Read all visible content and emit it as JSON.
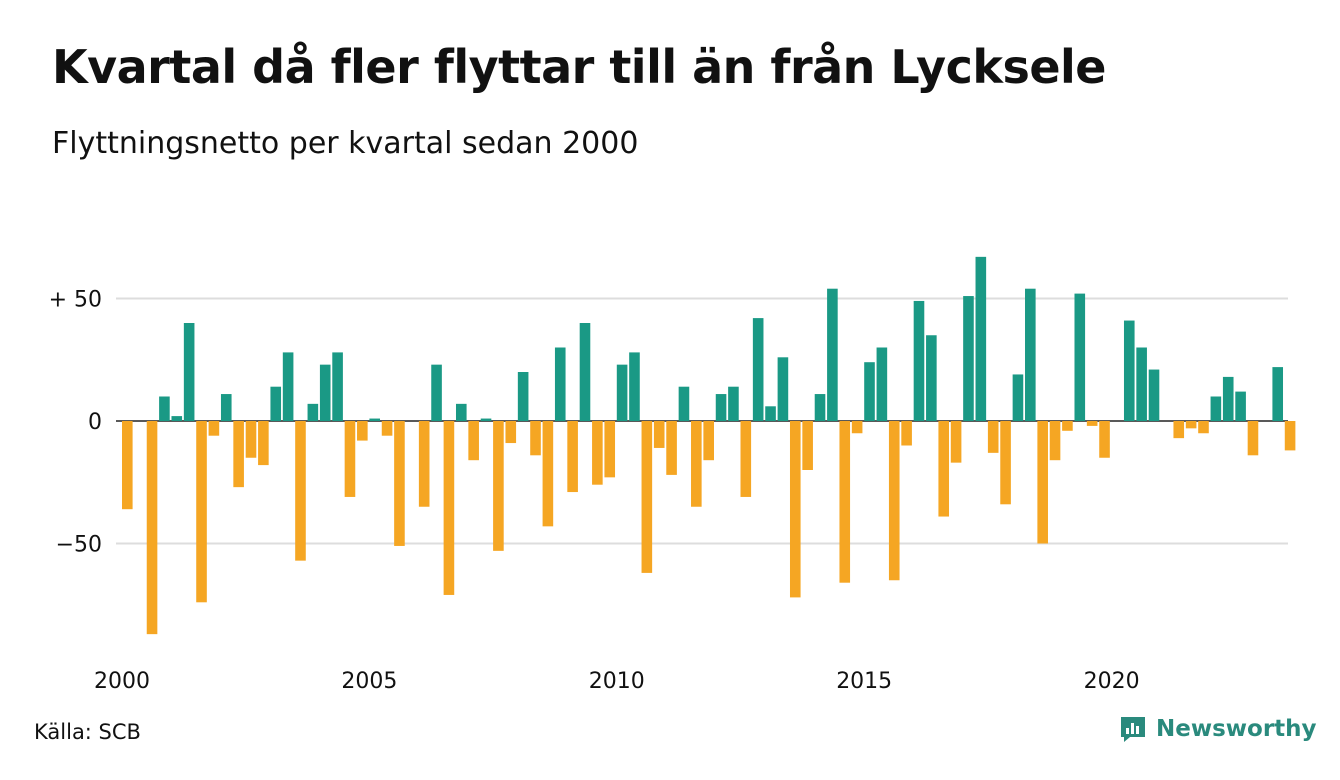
{
  "header": {
    "title": "Kvartal då fler flyttar till än från Lycksele",
    "subtitle": "Flyttningsnetto per kvartal sedan 2000"
  },
  "footer": {
    "source": "Källa: SCB",
    "brand": "Newsworthy"
  },
  "colors": {
    "positive": "#1a9985",
    "negative": "#f5a623",
    "grid": "#dddddd",
    "axis": "#222222",
    "brand": "#2a8a7d"
  },
  "icons": {
    "brand_logo": "newsworthy-logo-icon"
  },
  "chart_data": {
    "type": "bar",
    "title": "Kvartal då fler flyttar till än från Lycksele",
    "subtitle": "Flyttningsnetto per kvartal sedan 2000",
    "xlabel": "",
    "ylabel": "",
    "x_start": "2000 Q1",
    "x_ticks": [
      {
        "value": 2000,
        "label": "2000"
      },
      {
        "value": 2005,
        "label": "2005"
      },
      {
        "value": 2010,
        "label": "2010"
      },
      {
        "value": 2015,
        "label": "2015"
      },
      {
        "value": 2020,
        "label": "2020"
      }
    ],
    "y_ticks": [
      {
        "value": 50,
        "label": "+ 50"
      },
      {
        "value": 0,
        "label": "0"
      },
      {
        "value": -50,
        "label": "−50"
      }
    ],
    "ylim": [
      -90,
      68
    ],
    "grid": true,
    "categories": [
      "2000 Q1",
      "2000 Q2",
      "2000 Q3",
      "2000 Q4",
      "2001 Q1",
      "2001 Q2",
      "2001 Q3",
      "2001 Q4",
      "2002 Q1",
      "2002 Q2",
      "2002 Q3",
      "2002 Q4",
      "2003 Q1",
      "2003 Q2",
      "2003 Q3",
      "2003 Q4",
      "2004 Q1",
      "2004 Q2",
      "2004 Q3",
      "2004 Q4",
      "2005 Q1",
      "2005 Q2",
      "2005 Q3",
      "2005 Q4",
      "2006 Q1",
      "2006 Q2",
      "2006 Q3",
      "2006 Q4",
      "2007 Q1",
      "2007 Q2",
      "2007 Q3",
      "2007 Q4",
      "2008 Q1",
      "2008 Q2",
      "2008 Q3",
      "2008 Q4",
      "2009 Q1",
      "2009 Q2",
      "2009 Q3",
      "2009 Q4",
      "2010 Q1",
      "2010 Q2",
      "2010 Q3",
      "2010 Q4",
      "2011 Q1",
      "2011 Q2",
      "2011 Q3",
      "2011 Q4",
      "2012 Q1",
      "2012 Q2",
      "2012 Q3",
      "2012 Q4",
      "2013 Q1",
      "2013 Q2",
      "2013 Q3",
      "2013 Q4",
      "2014 Q1",
      "2014 Q2",
      "2014 Q3",
      "2014 Q4",
      "2015 Q1",
      "2015 Q2",
      "2015 Q3",
      "2015 Q4",
      "2016 Q1",
      "2016 Q2",
      "2016 Q3",
      "2016 Q4",
      "2017 Q1",
      "2017 Q2",
      "2017 Q3",
      "2017 Q4",
      "2018 Q1",
      "2018 Q2",
      "2018 Q3",
      "2018 Q4",
      "2019 Q1",
      "2019 Q2",
      "2019 Q3",
      "2019 Q4",
      "2020 Q1",
      "2020 Q2",
      "2020 Q3",
      "2020 Q4",
      "2021 Q1",
      "2021 Q2",
      "2021 Q3",
      "2021 Q4",
      "2022 Q1",
      "2022 Q2",
      "2022 Q3",
      "2022 Q4",
      "2023 Q1",
      "2023 Q2",
      "2023 Q3",
      "2023 Q4"
    ],
    "values": [
      -36,
      0,
      -87,
      10,
      2,
      40,
      -74,
      -6,
      11,
      -27,
      -15,
      -18,
      14,
      28,
      -57,
      7,
      23,
      28,
      -31,
      -8,
      1,
      -6,
      -51,
      0,
      -35,
      23,
      -71,
      7,
      -16,
      1,
      -53,
      -9,
      20,
      -14,
      -43,
      30,
      -29,
      40,
      -26,
      -23,
      23,
      28,
      -62,
      -11,
      -22,
      14,
      -35,
      -16,
      11,
      14,
      -31,
      42,
      6,
      26,
      -72,
      -20,
      11,
      54,
      -66,
      -5,
      24,
      30,
      -65,
      -10,
      49,
      35,
      -39,
      -17,
      51,
      67,
      -13,
      -34,
      19,
      54,
      -50,
      -16,
      -4,
      52,
      -2,
      -15,
      0,
      41,
      30,
      21,
      0,
      -7,
      -3,
      -5,
      10,
      18,
      12,
      -14,
      0,
      22,
      -12,
      0
    ]
  }
}
